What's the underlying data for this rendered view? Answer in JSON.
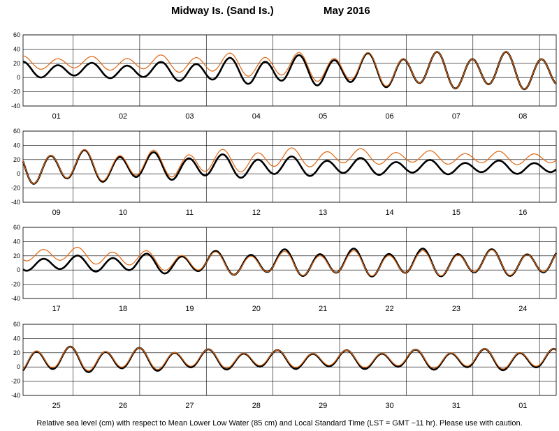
{
  "header": {
    "station": "Midway Is. (Sand Is.)",
    "period": "May   2016"
  },
  "footer": {
    "note": "Relative sea level (cm) with respect to Mean Lower Low Water (85 cm) and Local Standard Time (LST = GMT −11 hr). Please use with caution."
  },
  "colors": {
    "observed": "#000000",
    "predicted": "#e0660f",
    "grid": "#000000"
  },
  "chart_data": [
    {
      "type": "line",
      "panel": 1,
      "days": [
        "01",
        "02",
        "03",
        "04",
        "05",
        "06",
        "07",
        "08"
      ],
      "ylim": [
        -40,
        60
      ],
      "yticks": [
        -40,
        -20,
        0,
        20,
        40,
        60
      ],
      "series": [
        {
          "role": "observed",
          "mean": [
            11,
            10,
            9,
            9,
            10,
            10,
            10,
            9
          ],
          "amp": [
            12,
            11,
            13,
            19,
            22,
            25,
            27,
            28
          ]
        },
        {
          "role": "predicted",
          "mean": [
            21,
            20,
            20,
            19,
            16,
            12,
            10,
            9
          ],
          "amp": [
            10,
            10,
            12,
            16,
            20,
            24,
            27,
            28
          ]
        }
      ]
    },
    {
      "type": "line",
      "panel": 2,
      "days": [
        "09",
        "10",
        "11",
        "12",
        "13",
        "14",
        "15",
        "16"
      ],
      "ylim": [
        -40,
        60
      ],
      "yticks": [
        -40,
        -20,
        0,
        20,
        40,
        60
      ],
      "series": [
        {
          "role": "observed",
          "mean": [
            10,
            10,
            10,
            10,
            10,
            10,
            9,
            9
          ],
          "amp": [
            27,
            24,
            21,
            18,
            15,
            13,
            11,
            10
          ]
        },
        {
          "role": "predicted",
          "mean": [
            10,
            11,
            13,
            17,
            22,
            24,
            23,
            22
          ],
          "amp": [
            27,
            24,
            21,
            18,
            15,
            12,
            10,
            10
          ]
        }
      ]
    },
    {
      "type": "line",
      "panel": 3,
      "days": [
        "17",
        "18",
        "19",
        "20",
        "21",
        "22",
        "23",
        "24"
      ],
      "ylim": [
        -40,
        60
      ],
      "yticks": [
        -40,
        -20,
        0,
        20,
        40,
        60
      ],
      "series": [
        {
          "role": "observed",
          "mean": [
            9,
            9,
            9,
            10,
            10,
            10,
            10,
            10
          ],
          "amp": [
            11,
            12,
            15,
            18,
            20,
            21,
            21,
            20
          ]
        },
        {
          "role": "predicted",
          "mean": [
            23,
            20,
            13,
            9,
            9,
            9,
            9,
            10
          ],
          "amp": [
            11,
            12,
            14,
            17,
            18,
            19,
            19,
            19
          ]
        }
      ]
    },
    {
      "type": "line",
      "panel": 4,
      "days": [
        "25",
        "26",
        "27",
        "28",
        "29",
        "30",
        "31",
        "01"
      ],
      "ylim": [
        -40,
        60
      ],
      "yticks": [
        -40,
        -20,
        0,
        20,
        40,
        60
      ],
      "series": [
        {
          "role": "observed",
          "mean": [
            10,
            10,
            10,
            10,
            10,
            10,
            10,
            10
          ],
          "amp": [
            20,
            19,
            17,
            15,
            14,
            14,
            15,
            16
          ]
        },
        {
          "role": "predicted",
          "mean": [
            11,
            11,
            11,
            11,
            11,
            11,
            11,
            11
          ],
          "amp": [
            19,
            18,
            16,
            14,
            13,
            13,
            14,
            15
          ]
        }
      ]
    }
  ]
}
